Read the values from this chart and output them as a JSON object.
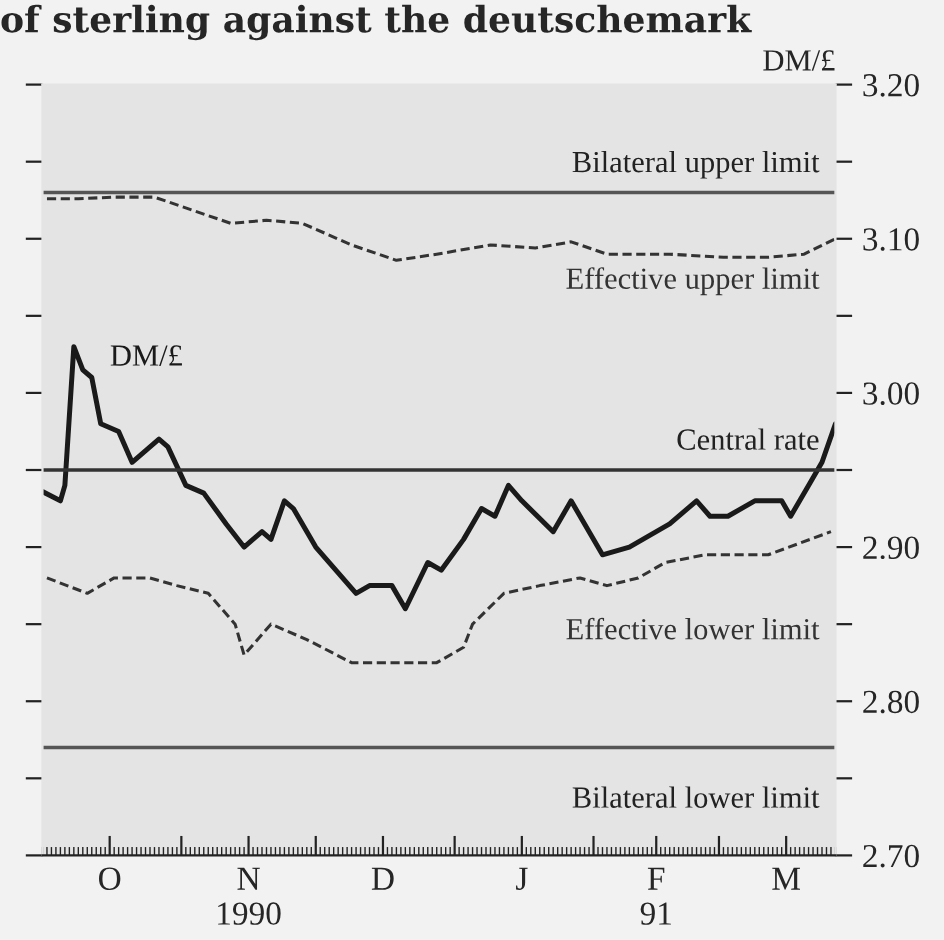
{
  "chart_data": {
    "type": "line",
    "title": "of sterling against the deutschemark",
    "y2label": "DM/£",
    "series": [
      {
        "name": "DM/£",
        "color": "#1a1a1a",
        "line_style": "solid",
        "x": [
          "1990-10-01",
          "1990-10-05",
          "1990-10-06",
          "1990-10-08",
          "1990-10-10",
          "1990-10-12",
          "1990-10-14",
          "1990-10-18",
          "1990-10-21",
          "1990-10-23",
          "1990-10-27",
          "1990-10-29",
          "1990-11-02",
          "1990-11-06",
          "1990-11-11",
          "1990-11-15",
          "1990-11-19",
          "1990-11-21",
          "1990-11-24",
          "1990-11-26",
          "1990-12-01",
          "1990-12-10",
          "1990-12-13",
          "1990-12-18",
          "1990-12-21",
          "1990-12-26",
          "1990-12-29",
          "1991-01-03",
          "1991-01-07",
          "1991-01-10",
          "1991-01-13",
          "1991-01-16",
          "1991-01-23",
          "1991-01-27",
          "1991-02-03",
          "1991-02-09",
          "1991-02-12",
          "1991-02-18",
          "1991-02-24",
          "1991-02-27",
          "1991-03-03",
          "1991-03-09",
          "1991-03-15",
          "1991-03-17",
          "1991-03-21",
          "1991-03-24",
          "1991-03-27"
        ],
        "values": [
          2.936,
          2.93,
          2.94,
          3.03,
          3.015,
          3.01,
          2.98,
          2.975,
          2.955,
          2.96,
          2.97,
          2.965,
          2.94,
          2.935,
          2.915,
          2.9,
          2.91,
          2.905,
          2.93,
          2.925,
          2.9,
          2.87,
          2.875,
          2.875,
          2.86,
          2.89,
          2.885,
          2.905,
          2.925,
          2.92,
          2.94,
          2.93,
          2.91,
          2.93,
          2.895,
          2.9,
          2.905,
          2.915,
          2.93,
          2.92,
          2.92,
          2.93,
          2.93,
          2.92,
          2.94,
          2.955,
          2.98
        ]
      },
      {
        "name": "Effective upper limit",
        "color": "#333333",
        "line_style": "dashed",
        "x": [
          "1990-10-02",
          "1990-10-09",
          "1990-10-17",
          "1990-10-26",
          "1990-11-04",
          "1990-11-12",
          "1990-11-20",
          "1990-11-28",
          "1990-12-09",
          "1990-12-19",
          "1990-12-28",
          "1991-01-09",
          "1991-01-19",
          "1991-01-27",
          "1991-02-04",
          "1991-02-18",
          "1991-03-02",
          "1991-03-12",
          "1991-03-20",
          "1991-03-27"
        ],
        "values": [
          3.126,
          3.126,
          3.127,
          3.127,
          3.118,
          3.11,
          3.112,
          3.11,
          3.096,
          3.086,
          3.09,
          3.096,
          3.094,
          3.098,
          3.09,
          3.09,
          3.088,
          3.088,
          3.09,
          3.1
        ]
      },
      {
        "name": "Effective lower limit",
        "color": "#333333",
        "line_style": "dashed",
        "x": [
          "1990-10-02",
          "1990-10-11",
          "1990-10-17",
          "1990-10-25",
          "1990-10-31",
          "1990-11-07",
          "1990-11-13",
          "1990-11-15",
          "1990-11-21",
          "1990-11-29",
          "1990-12-09",
          "1990-12-19",
          "1990-12-28",
          "1991-01-03",
          "1991-01-05",
          "1991-01-12",
          "1991-01-20",
          "1991-01-29",
          "1991-02-04",
          "1991-02-11",
          "1991-02-17",
          "1991-02-26",
          "1991-03-12",
          "1991-03-26"
        ],
        "values": [
          2.88,
          2.87,
          2.88,
          2.88,
          2.875,
          2.87,
          2.85,
          2.83,
          2.85,
          2.84,
          2.825,
          2.825,
          2.825,
          2.835,
          2.85,
          2.87,
          2.875,
          2.88,
          2.875,
          2.88,
          2.89,
          2.895,
          2.895,
          2.91
        ]
      }
    ],
    "ref_lines": [
      {
        "axis": "y",
        "value": 3.13,
        "label": "Bilateral upper limit",
        "color": "#555555"
      },
      {
        "axis": "y",
        "value": 2.95,
        "label": "Central rate",
        "color": "#333333"
      },
      {
        "axis": "y",
        "value": 2.77,
        "label": "Bilateral lower limit",
        "color": "#555555"
      }
    ],
    "xlim": [
      "1990-10-01",
      "1991-03-27"
    ],
    "xticks": [
      {
        "value": "1990-11-01",
        "label": null
      },
      {
        "value": "1990-12-01",
        "label": null
      },
      {
        "value": "1991-01-01",
        "label": null
      },
      {
        "value": "1991-02-01",
        "label": null
      },
      {
        "value": "1991-03-01",
        "label": null
      },
      {
        "value": "1990-10-16",
        "label": "O"
      },
      {
        "value": "1990-11-16",
        "label": "N\n1990"
      },
      {
        "value": "1990-12-16",
        "label": "D"
      },
      {
        "value": "1991-01-16",
        "label": "J"
      },
      {
        "value": "1991-02-15",
        "label": "F\n91"
      },
      {
        "value": "1991-03-16",
        "label": "M"
      }
    ],
    "ylim": [
      2.7,
      3.2
    ],
    "yticks": [
      {
        "value": 2.7,
        "label": "2.70"
      },
      {
        "value": 2.75,
        "label": null
      },
      {
        "value": 2.8,
        "label": "2.80"
      },
      {
        "value": 2.85,
        "label": null
      },
      {
        "value": 2.9,
        "label": "2.90"
      },
      {
        "value": 2.95,
        "label": null
      },
      {
        "value": 3.0,
        "label": "3.00"
      },
      {
        "value": 3.05,
        "label": null
      },
      {
        "value": 3.1,
        "label": "3.10"
      },
      {
        "value": 3.15,
        "label": null
      },
      {
        "value": 3.2,
        "label": "3.20"
      }
    ],
    "grid": false,
    "legend": false,
    "marker": "none"
  }
}
